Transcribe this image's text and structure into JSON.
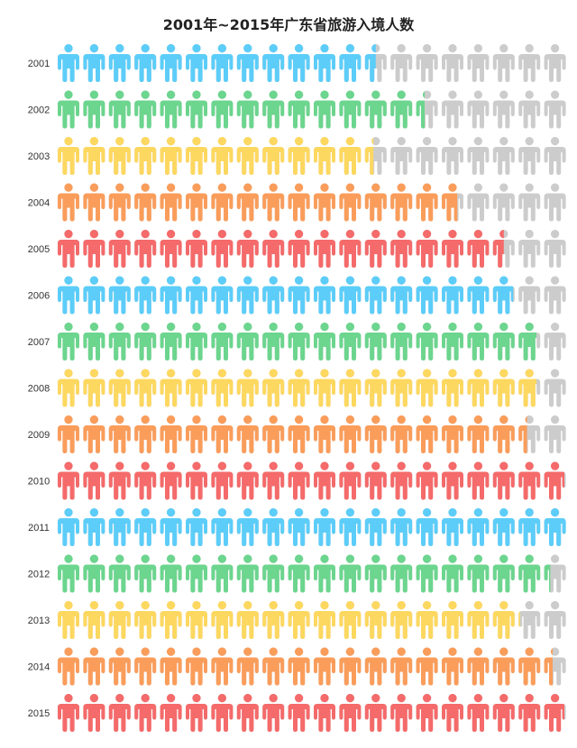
{
  "chart_data": {
    "type": "bar",
    "title": "2001年~2015年广东省旅游入境人数",
    "xlabel": "",
    "ylabel": "",
    "categories": [
      "2001",
      "2002",
      "2003",
      "2004",
      "2005",
      "2006",
      "2007",
      "2008",
      "2009",
      "2010",
      "2011",
      "2012",
      "2013",
      "2014",
      "2015"
    ],
    "values": [
      12.5,
      14.4,
      12.4,
      15.7,
      17.5,
      17.9,
      18.8,
      18.8,
      18.4,
      19.9,
      20.0,
      19.3,
      18.1,
      19.4,
      19.9
    ],
    "max_icons": 20,
    "palette": [
      "#5ccdf8",
      "#6cd58e",
      "#fdd860",
      "#fa9d5b",
      "#f56a6a"
    ],
    "empty_color": "#cccccc"
  }
}
